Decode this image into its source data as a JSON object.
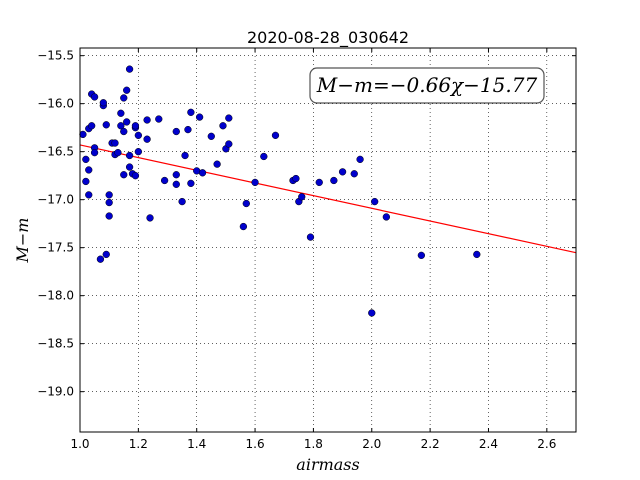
{
  "chart_data": {
    "type": "scatter",
    "title": "2020-08-28_030642",
    "xlabel": "airmass",
    "ylabel": "M−m",
    "xlim": [
      1.0,
      2.7
    ],
    "ylim": [
      -19.42,
      -15.42
    ],
    "y_inverted": true,
    "grid": true,
    "xticks": [
      1.0,
      1.2,
      1.4,
      1.6,
      1.8,
      2.0,
      2.2,
      2.4,
      2.6
    ],
    "xtick_labels": [
      "1.0",
      "1.2",
      "1.4",
      "1.6",
      "1.8",
      "2.0",
      "2.2",
      "2.4",
      "2.6"
    ],
    "yticks": [
      -15.5,
      -16.0,
      -16.5,
      -17.0,
      -17.5,
      -18.0,
      -18.5,
      -19.0
    ],
    "ytick_labels": [
      "−15.5",
      "−16.0",
      "−16.5",
      "−17.0",
      "−17.5",
      "−18.0",
      "−18.5",
      "−19.0"
    ],
    "annotation": "M−m=−0.66χ−15.77",
    "fit": {
      "slope": -0.66,
      "intercept": -15.77,
      "color": "#ff0000"
    },
    "marker_color": "#0000cc",
    "points": [
      [
        1.01,
        -16.32
      ],
      [
        1.02,
        -16.58
      ],
      [
        1.02,
        -16.81
      ],
      [
        1.03,
        -16.95
      ],
      [
        1.03,
        -16.69
      ],
      [
        1.03,
        -16.26
      ],
      [
        1.04,
        -16.23
      ],
      [
        1.04,
        -15.9
      ],
      [
        1.05,
        -15.93
      ],
      [
        1.05,
        -16.46
      ],
      [
        1.05,
        -16.51
      ],
      [
        1.07,
        -17.62
      ],
      [
        1.08,
        -16.02
      ],
      [
        1.08,
        -15.99
      ],
      [
        1.09,
        -16.22
      ],
      [
        1.09,
        -17.57
      ],
      [
        1.1,
        -16.95
      ],
      [
        1.1,
        -17.03
      ],
      [
        1.1,
        -17.17
      ],
      [
        1.11,
        -16.41
      ],
      [
        1.12,
        -16.41
      ],
      [
        1.12,
        -16.53
      ],
      [
        1.13,
        -16.51
      ],
      [
        1.14,
        -16.1
      ],
      [
        1.14,
        -16.23
      ],
      [
        1.15,
        -15.94
      ],
      [
        1.15,
        -16.29
      ],
      [
        1.15,
        -16.74
      ],
      [
        1.16,
        -15.86
      ],
      [
        1.16,
        -16.19
      ],
      [
        1.17,
        -16.54
      ],
      [
        1.17,
        -15.64
      ],
      [
        1.17,
        -16.66
      ],
      [
        1.18,
        -16.73
      ],
      [
        1.19,
        -16.25
      ],
      [
        1.19,
        -16.23
      ],
      [
        1.19,
        -16.75
      ],
      [
        1.2,
        -16.5
      ],
      [
        1.2,
        -16.33
      ],
      [
        1.23,
        -16.37
      ],
      [
        1.23,
        -16.17
      ],
      [
        1.24,
        -17.19
      ],
      [
        1.27,
        -16.16
      ],
      [
        1.29,
        -16.8
      ],
      [
        1.33,
        -16.29
      ],
      [
        1.33,
        -16.74
      ],
      [
        1.33,
        -16.84
      ],
      [
        1.35,
        -17.02
      ],
      [
        1.36,
        -16.54
      ],
      [
        1.37,
        -16.27
      ],
      [
        1.38,
        -16.09
      ],
      [
        1.38,
        -16.83
      ],
      [
        1.4,
        -16.7
      ],
      [
        1.41,
        -16.14
      ],
      [
        1.42,
        -16.72
      ],
      [
        1.45,
        -16.34
      ],
      [
        1.47,
        -16.63
      ],
      [
        1.49,
        -16.23
      ],
      [
        1.5,
        -16.47
      ],
      [
        1.51,
        -16.15
      ],
      [
        1.51,
        -16.42
      ],
      [
        1.56,
        -17.28
      ],
      [
        1.57,
        -17.04
      ],
      [
        1.6,
        -16.82
      ],
      [
        1.63,
        -16.55
      ],
      [
        1.67,
        -16.33
      ],
      [
        1.73,
        -16.8
      ],
      [
        1.74,
        -16.78
      ],
      [
        1.75,
        -17.02
      ],
      [
        1.76,
        -16.97
      ],
      [
        1.79,
        -17.39
      ],
      [
        1.82,
        -16.82
      ],
      [
        1.87,
        -16.8
      ],
      [
        1.9,
        -16.71
      ],
      [
        1.94,
        -16.73
      ],
      [
        1.96,
        -16.58
      ],
      [
        2.0,
        -18.18
      ],
      [
        2.01,
        -17.02
      ],
      [
        2.05,
        -17.18
      ],
      [
        2.17,
        -17.58
      ],
      [
        2.36,
        -17.57
      ]
    ]
  }
}
